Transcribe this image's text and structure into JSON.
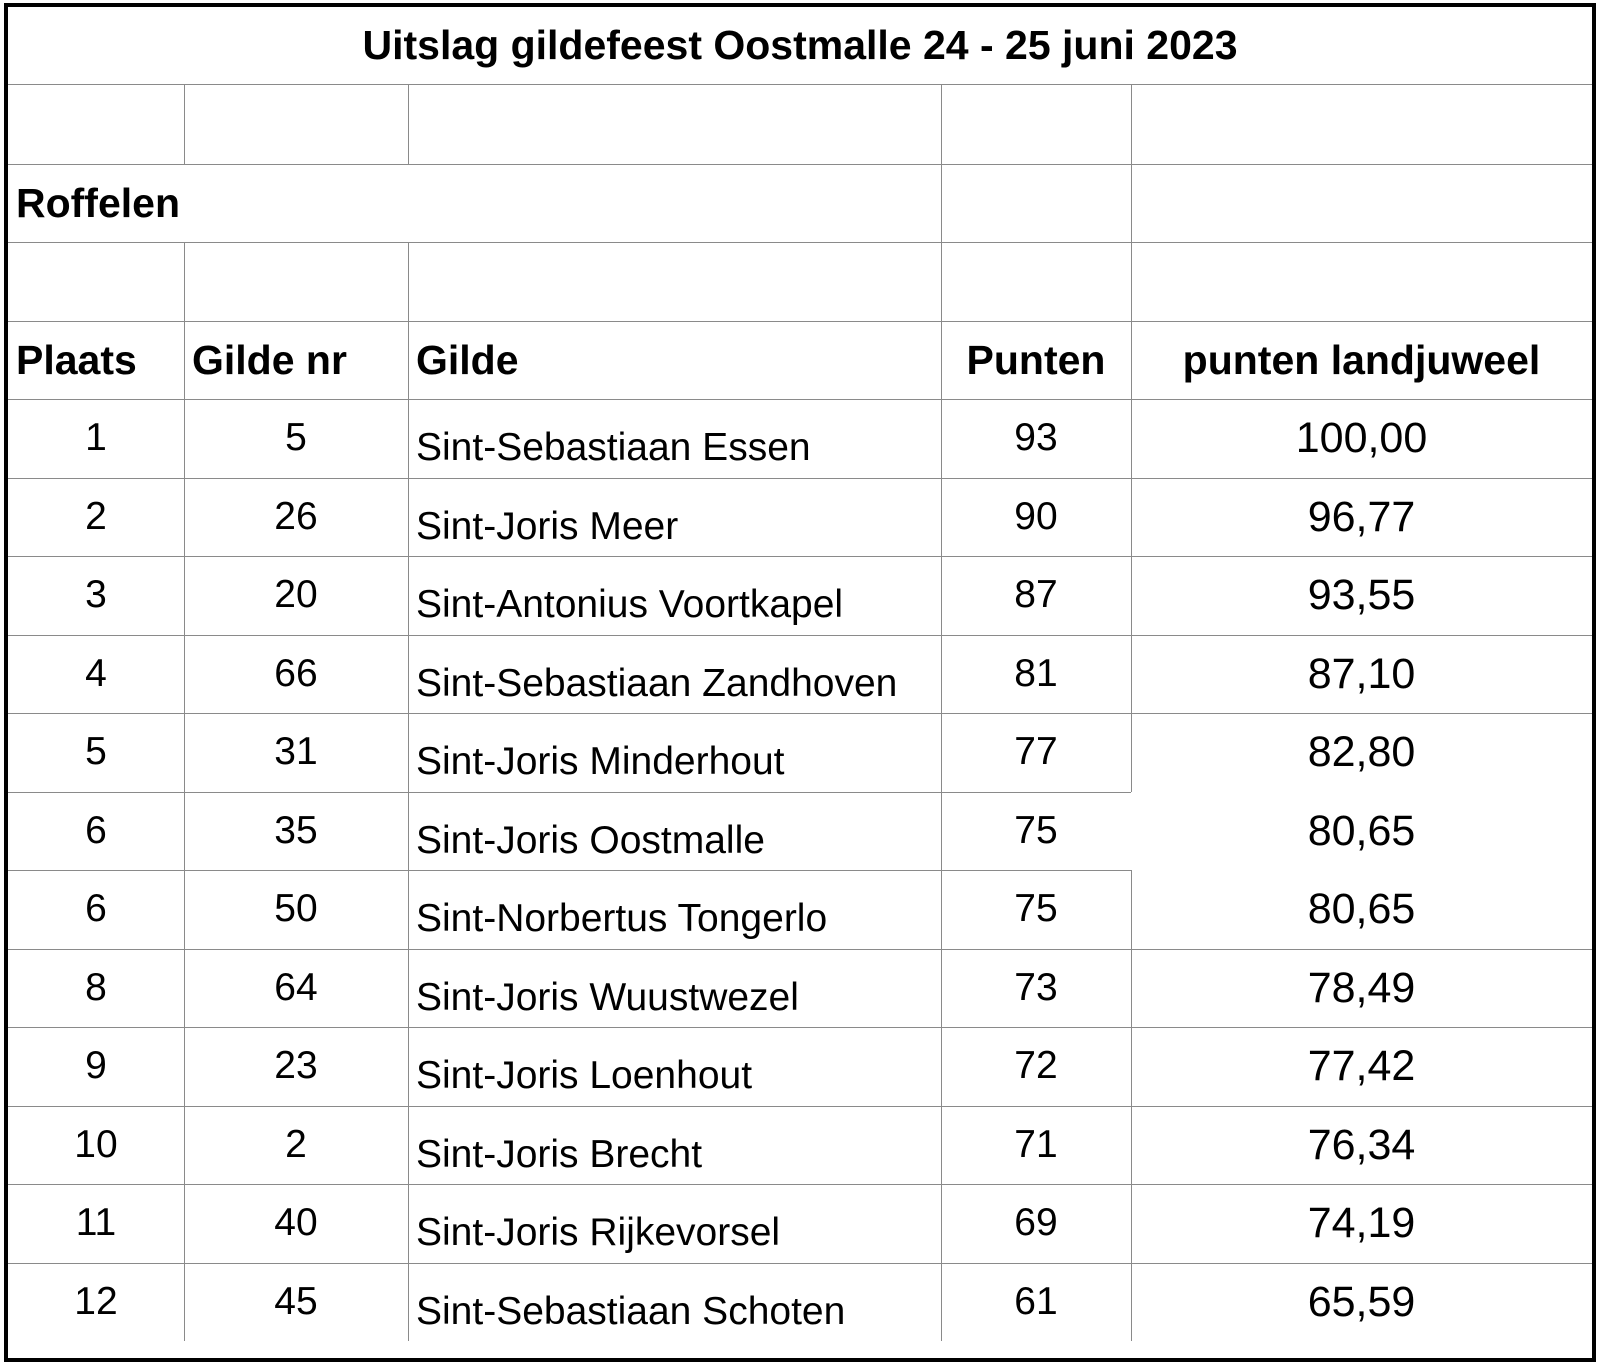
{
  "title": "Uitslag gildefeest Oostmalle 24 - 25 juni 2023",
  "section": "Roffelen",
  "headers": {
    "plaats": "Plaats",
    "gilde_nr": "Gilde nr",
    "gilde": "Gilde",
    "punten": "Punten",
    "landjuweel": "punten landjuweel"
  },
  "rows": [
    {
      "plaats": "1",
      "nr": "5",
      "gilde": "Sint-Sebastiaan Essen",
      "punten": "93",
      "landjuweel": "100,00"
    },
    {
      "plaats": "2",
      "nr": "26",
      "gilde": "Sint-Joris Meer",
      "punten": "90",
      "landjuweel": "96,77"
    },
    {
      "plaats": "3",
      "nr": "20",
      "gilde": "Sint-Antonius Voortkapel",
      "punten": "87",
      "landjuweel": "93,55"
    },
    {
      "plaats": "4",
      "nr": "66",
      "gilde": "Sint-Sebastiaan Zandhoven",
      "punten": "81",
      "landjuweel": "87,10"
    },
    {
      "plaats": "5",
      "nr": "31",
      "gilde": "Sint-Joris Minderhout",
      "punten": "77",
      "landjuweel": "82,80"
    },
    {
      "plaats": "6",
      "nr": "35",
      "gilde": "Sint-Joris Oostmalle",
      "punten": "75",
      "landjuweel": "80,65"
    },
    {
      "plaats": "6",
      "nr": "50",
      "gilde": "Sint-Norbertus Tongerlo",
      "punten": "75",
      "landjuweel": "80,65"
    },
    {
      "plaats": "8",
      "nr": "64",
      "gilde": "Sint-Joris Wuustwezel",
      "punten": "73",
      "landjuweel": "78,49"
    },
    {
      "plaats": "9",
      "nr": "23",
      "gilde": "Sint-Joris Loenhout",
      "punten": "72",
      "landjuweel": "77,42"
    },
    {
      "plaats": "10",
      "nr": "2",
      "gilde": "Sint-Joris Brecht",
      "punten": "71",
      "landjuweel": "76,34"
    },
    {
      "plaats": "11",
      "nr": "40",
      "gilde": "Sint-Joris Rijkevorsel",
      "punten": "69",
      "landjuweel": "74,19"
    },
    {
      "plaats": "12",
      "nr": "45",
      "gilde": "Sint-Sebastiaan Schoten",
      "punten": "61",
      "landjuweel": "65,59"
    }
  ]
}
